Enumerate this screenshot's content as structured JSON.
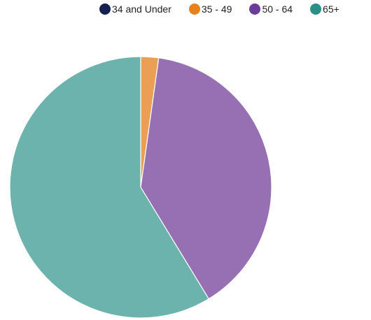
{
  "chart_data": {
    "type": "pie",
    "legend_position": "top-right",
    "series": [
      {
        "name": "34 and Under",
        "value": 0.0,
        "color": "#14204d"
      },
      {
        "name": "35 - 49",
        "value": 2.2,
        "color": "#eb9f54",
        "legend_color": "#e8811c"
      },
      {
        "name": "50 - 64",
        "value": 39.1,
        "color": "#9670b3",
        "legend_color": "#6a3d9a"
      },
      {
        "name": "65+",
        "value": 58.7,
        "color": "#6bb3ac",
        "legend_color": "#2a8f85"
      }
    ]
  }
}
